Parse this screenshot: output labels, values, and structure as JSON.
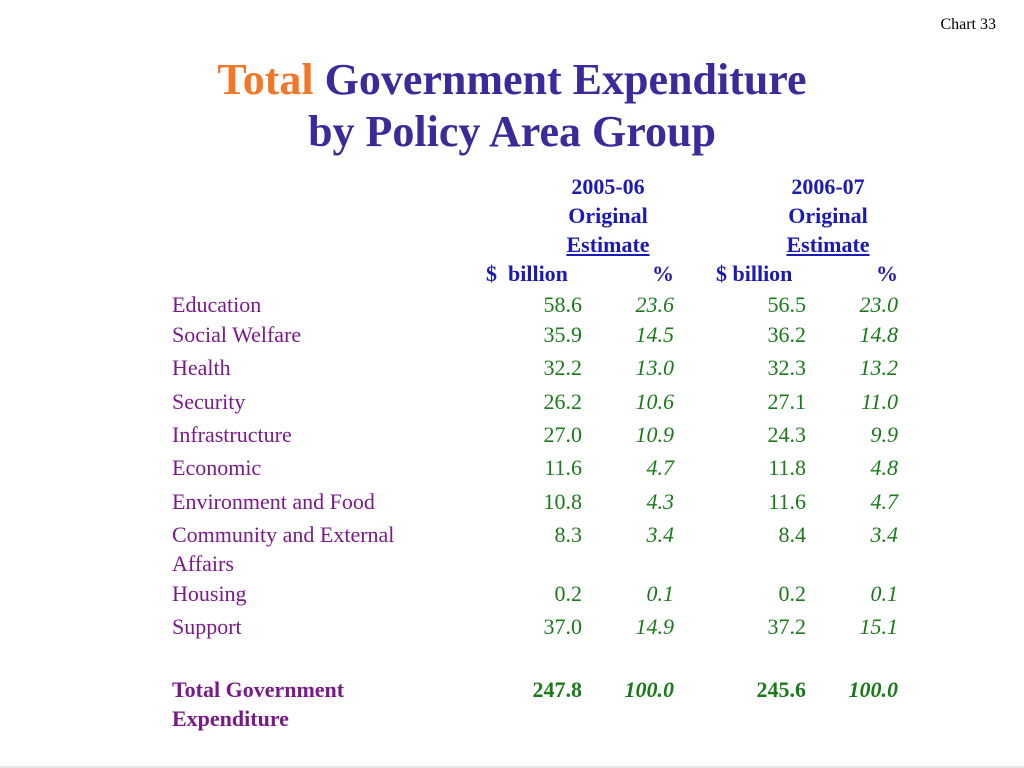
{
  "chart_label": "Chart 33",
  "title": {
    "accent": "Total",
    "line1_rest": " Government Expenditure",
    "line2": "by Policy Area Group"
  },
  "columns": [
    {
      "year": "2005-06",
      "kind": "Original",
      "estimate": "Estimate",
      "unit_amount": "$  billion",
      "unit_pct": "%"
    },
    {
      "year": "2006-07",
      "kind": "Original",
      "estimate": "Estimate",
      "unit_amount": "$ billion",
      "unit_pct": "%"
    }
  ],
  "rows": [
    {
      "label": "Education",
      "v1": "58.6",
      "p1": "23.6",
      "v2": "56.5",
      "p2": "23.0"
    },
    {
      "label": "Social Welfare",
      "v1": "35.9",
      "p1": "14.5",
      "v2": "36.2",
      "p2": "14.8"
    },
    {
      "label": "Health",
      "v1": "32.2",
      "p1": "13.0",
      "v2": "32.3",
      "p2": "13.2"
    },
    {
      "label": "Security",
      "v1": "26.2",
      "p1": "10.6",
      "v2": "27.1",
      "p2": "11.0"
    },
    {
      "label": "Infrastructure",
      "v1": "27.0",
      "p1": "10.9",
      "v2": "24.3",
      "p2": "9.9"
    },
    {
      "label": "Economic",
      "v1": "11.6",
      "p1": "4.7",
      "v2": "11.8",
      "p2": "4.8"
    },
    {
      "label": "Environment and Food",
      "v1": "10.8",
      "p1": "4.3",
      "v2": "11.6",
      "p2": "4.7"
    },
    {
      "label": "Community and External Affairs",
      "v1": "8.3",
      "p1": "3.4",
      "v2": "8.4",
      "p2": "3.4"
    },
    {
      "label": "Housing",
      "v1": "0.2",
      "p1": "0.1",
      "v2": "0.2",
      "p2": "0.1"
    },
    {
      "label": "Support",
      "v1": "37.0",
      "p1": "14.9",
      "v2": "37.2",
      "p2": "15.1"
    }
  ],
  "total": {
    "label": "Total Government Expenditure",
    "v1": "247.8",
    "p1": "100.0",
    "v2": "245.6",
    "p2": "100.0"
  },
  "colors": {
    "title_accent": "#f07828",
    "title_main": "#3a2a9a",
    "header": "#1a1ab4",
    "label": "#7a1a8a",
    "values": "#1a7a1a"
  }
}
